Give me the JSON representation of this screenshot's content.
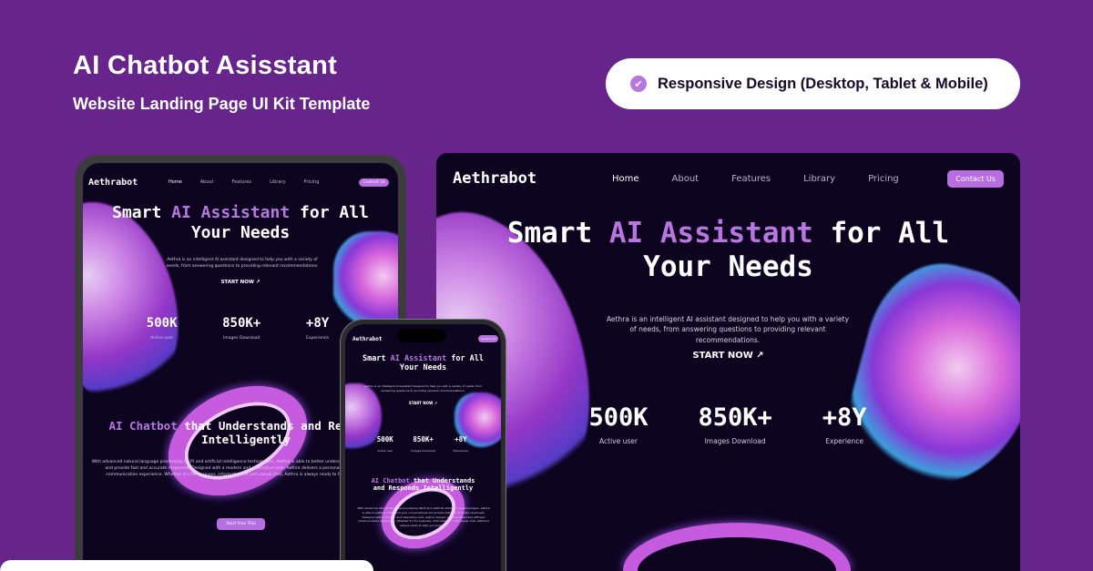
{
  "banner": {
    "title": "AI Chatbot Asisstant",
    "subtitle": "Website Landing Page UI Kit Template",
    "feature_pill": "Responsive Design (Desktop, Tablet & Mobile)",
    "check_icon": "check-circle-icon",
    "background": "#67258c",
    "accent": "#b877e0"
  },
  "site": {
    "logo": "Aethrabot",
    "nav": [
      "Home",
      "About",
      "Features",
      "Library",
      "Pricing"
    ],
    "contact": "Contact Us",
    "hero": {
      "title_pre": "Smart ",
      "title_accent": "AI Assistant",
      "title_post": " for All",
      "title_line2": "Your Needs",
      "desc": "Aethra is an intelligent AI assistant designed to help you with a variety of needs, from answering questions to providing relevant recommendations.",
      "cta": "START NOW ↗"
    },
    "stats": [
      {
        "value": "500K",
        "label": "Active user"
      },
      {
        "value": "850K+",
        "label": "Images Download"
      },
      {
        "value": "+8Y",
        "label": "Experience"
      }
    ],
    "section2": {
      "title_accent": "AI Chatbot",
      "title_rest": " that Understands and Responds Intelligently",
      "desc": "With advanced natural language processing (NLP) and artificial intelligence technologies, Aethra is able to better understand your conversations and provide fast and accurate responses. Designed with a modern and interactive look, Aethra delivers a personalized and efficient communication experience. Whether it's for business, information, or just casual chat, Aethra is always ready to help you anytime.",
      "cta": "Start Free Trial"
    }
  }
}
